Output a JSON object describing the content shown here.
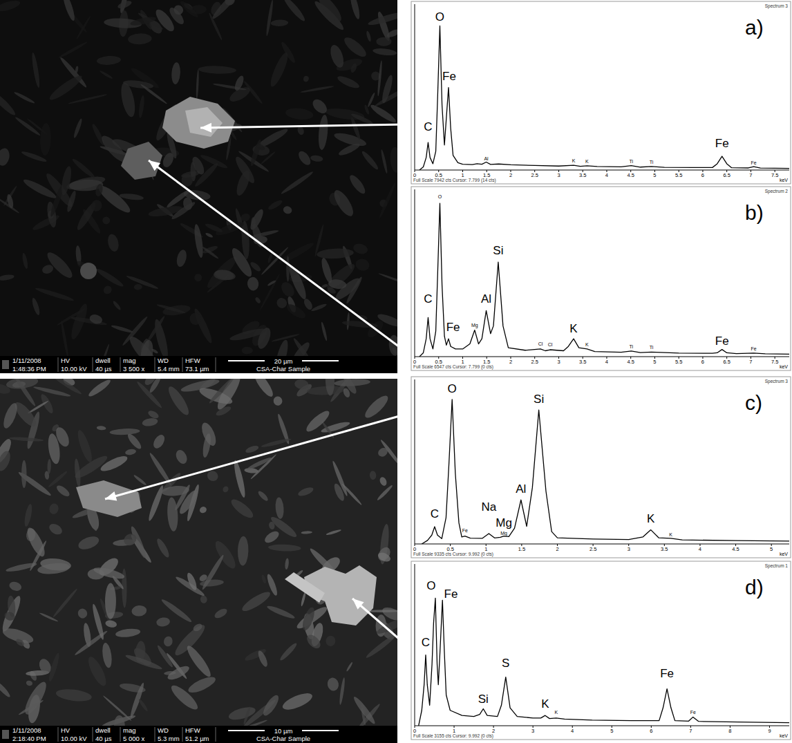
{
  "chart_data": [
    {
      "type": "line",
      "panel_label": "a)",
      "spectrum": "Spectrum 3",
      "footer": "Full Scale 7942 cts Cursor: 7.799 (14 cts)",
      "x_label": "keV",
      "xlim": [
        0,
        7.8
      ],
      "xticks": [
        0,
        0.5,
        1,
        1.5,
        2,
        2.5,
        3,
        3.5,
        4,
        4.5,
        5,
        5.5,
        6,
        6.5,
        7,
        7.5
      ],
      "ylim": [
        0,
        7942
      ],
      "tick_labels": "x",
      "color": "#000000",
      "x": [
        0.1,
        0.18,
        0.24,
        0.28,
        0.32,
        0.38,
        0.44,
        0.48,
        0.525,
        0.57,
        0.62,
        0.66,
        0.705,
        0.75,
        0.8,
        0.9,
        1.0,
        1.2,
        1.3,
        1.4,
        1.49,
        1.58,
        1.75,
        2.0,
        2.5,
        3.0,
        3.31,
        3.45,
        3.59,
        3.8,
        4.3,
        4.51,
        4.7,
        4.93,
        5.2,
        5.8,
        6.2,
        6.3,
        6.4,
        6.5,
        6.6,
        6.95,
        7.06,
        7.2,
        7.8
      ],
      "values": [
        0,
        150,
        600,
        1320,
        600,
        300,
        900,
        3600,
        6900,
        3100,
        1200,
        2500,
        3950,
        2000,
        700,
        350,
        280,
        260,
        300,
        280,
        380,
        270,
        290,
        250,
        220,
        190,
        230,
        180,
        200,
        170,
        150,
        210,
        140,
        170,
        130,
        120,
        120,
        300,
        660,
        300,
        110,
        100,
        160,
        95,
        80
      ],
      "peak_labels": [
        {
          "text": "C",
          "x": 0.28,
          "y": 1900
        },
        {
          "text": "O",
          "x": 0.525,
          "y": 7150
        },
        {
          "text": "Fe",
          "x": 0.72,
          "y": 4300
        },
        {
          "text": "Fe",
          "x": 6.4,
          "y": 1100
        }
      ],
      "minor_peak_labels": [
        {
          "text": "Al",
          "x": 1.49,
          "y": 450
        },
        {
          "text": "K",
          "x": 3.31,
          "y": 350
        },
        {
          "text": "K",
          "x": 3.59,
          "y": 330
        },
        {
          "text": "Ti",
          "x": 4.51,
          "y": 320
        },
        {
          "text": "Ti",
          "x": 4.93,
          "y": 300
        },
        {
          "text": "Fe",
          "x": 7.06,
          "y": 260
        }
      ]
    },
    {
      "type": "line",
      "panel_label": "b)",
      "spectrum": "Spectrum 2",
      "footer": "Full Scale 6547 cts Cursor: 7.799 (0 cts)",
      "x_label": "keV",
      "xlim": [
        0,
        7.8
      ],
      "xticks": [
        0,
        0.5,
        1,
        1.5,
        2,
        2.5,
        3,
        3.5,
        4,
        4.5,
        5,
        5.5,
        6,
        6.5,
        7,
        7.5
      ],
      "ylim": [
        0,
        6547
      ],
      "tick_labels": "x",
      "color": "#000000",
      "x": [
        0.1,
        0.18,
        0.24,
        0.28,
        0.32,
        0.38,
        0.44,
        0.48,
        0.525,
        0.57,
        0.62,
        0.66,
        0.705,
        0.75,
        0.85,
        1.0,
        1.15,
        1.25,
        1.33,
        1.4,
        1.49,
        1.58,
        1.64,
        1.74,
        1.84,
        1.95,
        2.3,
        2.62,
        2.72,
        2.82,
        3.1,
        3.2,
        3.31,
        3.42,
        3.59,
        3.75,
        4.3,
        4.51,
        4.7,
        4.93,
        5.5,
        6.2,
        6.3,
        6.4,
        6.5,
        6.7,
        7.06,
        7.3,
        7.8
      ],
      "values": [
        0,
        150,
        700,
        1530,
        700,
        300,
        1000,
        3300,
        6000,
        2800,
        800,
        450,
        700,
        400,
        300,
        300,
        500,
        1040,
        500,
        700,
        1800,
        900,
        1200,
        3700,
        1200,
        350,
        250,
        300,
        230,
        270,
        230,
        400,
        700,
        350,
        300,
        200,
        170,
        220,
        160,
        180,
        140,
        130,
        150,
        280,
        150,
        120,
        140,
        110,
        100
      ],
      "peak_labels": [
        {
          "text": "C",
          "x": 0.28,
          "y": 2100
        },
        {
          "text": "Fe",
          "x": 0.8,
          "y": 1000
        },
        {
          "text": "Al",
          "x": 1.49,
          "y": 2100
        },
        {
          "text": "Si",
          "x": 1.74,
          "y": 4000
        },
        {
          "text": "K",
          "x": 3.31,
          "y": 950
        },
        {
          "text": "Fe",
          "x": 6.4,
          "y": 450
        }
      ],
      "minor_peak_labels": [
        {
          "text": "O",
          "x": 0.525,
          "y": 6200
        },
        {
          "text": "Mg",
          "x": 1.25,
          "y": 1150
        },
        {
          "text": "Cl",
          "x": 2.62,
          "y": 420
        },
        {
          "text": "Cl",
          "x": 2.82,
          "y": 400
        },
        {
          "text": "K",
          "x": 3.59,
          "y": 400
        },
        {
          "text": "Ti",
          "x": 4.51,
          "y": 330
        },
        {
          "text": "Ti",
          "x": 4.93,
          "y": 300
        },
        {
          "text": "Fe",
          "x": 7.06,
          "y": 240
        }
      ]
    },
    {
      "type": "line",
      "panel_label": "c)",
      "spectrum": "Spectrum 3",
      "footer": "Full Scale 9335 cts Cursor: 9.992 (0 cts)",
      "x_label": "keV",
      "xlim": [
        0,
        5.25
      ],
      "xticks": [
        0,
        0.5,
        1,
        1.5,
        2,
        2.5,
        3,
        3.5,
        4,
        4.5,
        5
      ],
      "ylim": [
        0,
        9335
      ],
      "tick_labels": "x",
      "color": "#000000",
      "x": [
        0.1,
        0.18,
        0.24,
        0.28,
        0.32,
        0.38,
        0.44,
        0.48,
        0.525,
        0.57,
        0.62,
        0.66,
        0.705,
        0.78,
        0.95,
        1.04,
        1.12,
        1.2,
        1.25,
        1.32,
        1.4,
        1.49,
        1.57,
        1.65,
        1.74,
        1.84,
        1.92,
        2.0,
        2.5,
        3.0,
        3.2,
        3.31,
        3.42,
        3.59,
        3.75,
        4.5,
        5.25
      ],
      "values": [
        0,
        200,
        500,
        980,
        500,
        300,
        1500,
        4500,
        8200,
        4000,
        1200,
        400,
        450,
        330,
        320,
        590,
        340,
        380,
        450,
        420,
        900,
        2500,
        1000,
        3200,
        7600,
        3000,
        700,
        350,
        280,
        250,
        400,
        800,
        350,
        320,
        230,
        190,
        160
      ],
      "peak_labels": [
        {
          "text": "C",
          "x": 0.28,
          "y": 1500
        },
        {
          "text": "O",
          "x": 0.525,
          "y": 8600
        },
        {
          "text": "Na",
          "x": 1.04,
          "y": 1900
        },
        {
          "text": "Mg",
          "x": 1.25,
          "y": 1000
        },
        {
          "text": "Al",
          "x": 1.49,
          "y": 2900
        },
        {
          "text": "Si",
          "x": 1.74,
          "y": 8000
        },
        {
          "text": "K",
          "x": 3.31,
          "y": 1200
        }
      ],
      "minor_peak_labels": [
        {
          "text": "Fe",
          "x": 0.705,
          "y": 650
        },
        {
          "text": "Mg",
          "x": 1.25,
          "y": 500
        },
        {
          "text": "K",
          "x": 3.59,
          "y": 450
        }
      ]
    },
    {
      "type": "line",
      "panel_label": "d)",
      "spectrum": "Spectrum 1",
      "footer": "Full Scale 3155 cts Cursor: 9.992 (0 cts)",
      "x_label": "keV",
      "xlim": [
        0,
        9.5
      ],
      "xticks": [
        0,
        1,
        2,
        3,
        4,
        5,
        6,
        7,
        8,
        9
      ],
      "ylim": [
        0,
        3155
      ],
      "tick_labels": "x",
      "color": "#000000",
      "x": [
        0.1,
        0.18,
        0.24,
        0.28,
        0.32,
        0.38,
        0.44,
        0.48,
        0.525,
        0.57,
        0.6,
        0.64,
        0.705,
        0.75,
        0.8,
        0.9,
        1.2,
        1.5,
        1.65,
        1.74,
        1.84,
        2.1,
        2.2,
        2.31,
        2.42,
        2.6,
        3.0,
        3.2,
        3.31,
        3.42,
        3.59,
        3.8,
        4.5,
        5.5,
        6.2,
        6.3,
        6.4,
        6.5,
        6.6,
        6.95,
        7.06,
        7.2,
        8.5,
        9.5
      ],
      "values": [
        0,
        300,
        800,
        1380,
        800,
        400,
        1200,
        2000,
        2490,
        1200,
        800,
        1400,
        2450,
        1500,
        600,
        300,
        200,
        180,
        220,
        330,
        200,
        180,
        400,
        950,
        350,
        180,
        150,
        150,
        200,
        140,
        150,
        130,
        110,
        100,
        100,
        350,
        720,
        350,
        100,
        90,
        170,
        85,
        70,
        60
      ],
      "peak_labels": [
        {
          "text": "C",
          "x": 0.28,
          "y": 1550
        },
        {
          "text": "O",
          "x": 0.42,
          "y": 2650
        },
        {
          "text": "Fe",
          "x": 0.92,
          "y": 2500
        },
        {
          "text": "Si",
          "x": 1.74,
          "y": 450
        },
        {
          "text": "S",
          "x": 2.31,
          "y": 1150
        },
        {
          "text": "K",
          "x": 3.31,
          "y": 350
        },
        {
          "text": "Fe",
          "x": 6.4,
          "y": 950
        }
      ],
      "minor_peak_labels": [
        {
          "text": "K",
          "x": 3.59,
          "y": 230
        },
        {
          "text": "Fe",
          "x": 7.06,
          "y": 230
        }
      ]
    }
  ],
  "images": [
    {
      "header_row": [
        "1/11/2008",
        "HV",
        "dwell",
        "mag",
        "WD",
        "HFW"
      ],
      "value_row": [
        "1:48:36 PM",
        "10.00 kV",
        "40 µs",
        "3 500 x",
        "5.4 mm",
        "73.1 µm"
      ],
      "scale_bar": "20 µm",
      "sample": "CSA-Char Sample"
    },
    {
      "header_row": [
        "1/11/2008",
        "HV",
        "dwell",
        "mag",
        "WD",
        "HFW"
      ],
      "value_row": [
        "2:18:40 PM",
        "10.00 kV",
        "40 µs",
        "5 000 x",
        "5.3 mm",
        "51.2 µm"
      ],
      "scale_bar": "10 µm",
      "sample": "CSA-Char Sample"
    }
  ]
}
